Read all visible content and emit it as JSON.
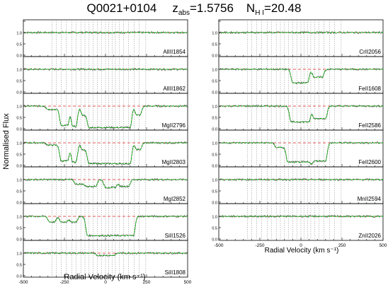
{
  "title": {
    "quasar": "Q0021+0104",
    "z_label": "z",
    "z_sub": "abs",
    "z_value": "=1.5756",
    "n_label": "N",
    "n_sub": "H I",
    "n_value": "=20.48"
  },
  "ylabel": "Normalised Flux",
  "chart_data": {
    "type": "line",
    "title": "Q0021+0104",
    "xlabel": "Radial Velocity (km s⁻¹)",
    "xlim": [
      -500,
      500
    ],
    "ylim": [
      0.0,
      1.5
    ],
    "yticks": [
      "0.0",
      "0.5",
      "1.0",
      "1.5"
    ],
    "xtick_labels": [
      "-500",
      "-250",
      "0",
      "250",
      "500"
    ],
    "continuum_level": 1.0,
    "component_velocities": [
      -325,
      -300,
      -270,
      -240,
      -205,
      -180,
      -150,
      -125,
      -100,
      -75,
      -50,
      -25,
      0,
      20,
      40,
      60,
      85,
      110,
      140,
      175,
      205,
      245
    ],
    "colors": {
      "data": "#555555",
      "model": "#00b000",
      "continuum": "#e02020",
      "component": "#999999"
    },
    "left_panels": [
      {
        "ion": "AlIII1854",
        "features": []
      },
      {
        "ion": "AlIII1862",
        "features": []
      },
      {
        "ion": "MgII2796",
        "features": [
          [
            -350,
            -300,
            0.15
          ],
          [
            -270,
            -230,
            0.85
          ],
          [
            -200,
            -180,
            0.9
          ],
          [
            -140,
            -110,
            0.4
          ],
          [
            -100,
            150,
            0.95
          ],
          [
            190,
            210,
            0.4
          ]
        ]
      },
      {
        "ion": "MgII2803",
        "features": [
          [
            -350,
            -300,
            0.1
          ],
          [
            -270,
            -230,
            0.8
          ],
          [
            -200,
            -180,
            0.85
          ],
          [
            -140,
            -110,
            0.3
          ],
          [
            -100,
            150,
            0.92
          ],
          [
            190,
            210,
            0.3
          ]
        ]
      },
      {
        "ion": "MgI2852",
        "features": [
          [
            -180,
            -130,
            0.2
          ],
          [
            -110,
            -60,
            0.3
          ],
          [
            0,
            60,
            0.35
          ],
          [
            90,
            140,
            0.3
          ]
        ]
      },
      {
        "ion": "SiII1526",
        "features": [
          [
            -340,
            -310,
            0.25
          ],
          [
            -270,
            -240,
            0.25
          ],
          [
            -210,
            -180,
            0.25
          ],
          [
            -110,
            170,
            0.85
          ]
        ]
      },
      {
        "ion": "SiII1808",
        "features": [
          [
            -50,
            50,
            0.1
          ]
        ]
      }
    ],
    "right_panels": [
      {
        "ion": "CrII2056",
        "features": []
      },
      {
        "ion": "FeII1608",
        "features": [
          [
            -50,
            40,
            0.6
          ],
          [
            80,
            130,
            0.35
          ]
        ]
      },
      {
        "ion": "FeII2586",
        "features": [
          [
            -60,
            50,
            0.7
          ],
          [
            80,
            150,
            0.55
          ]
        ]
      },
      {
        "ion": "FeII2600",
        "features": [
          [
            -150,
            -100,
            0.2
          ],
          [
            -80,
            60,
            0.85
          ],
          [
            70,
            150,
            0.8
          ]
        ]
      },
      {
        "ion": "MnII2594",
        "features": []
      },
      {
        "ion": "ZnII2026",
        "features": []
      }
    ]
  }
}
